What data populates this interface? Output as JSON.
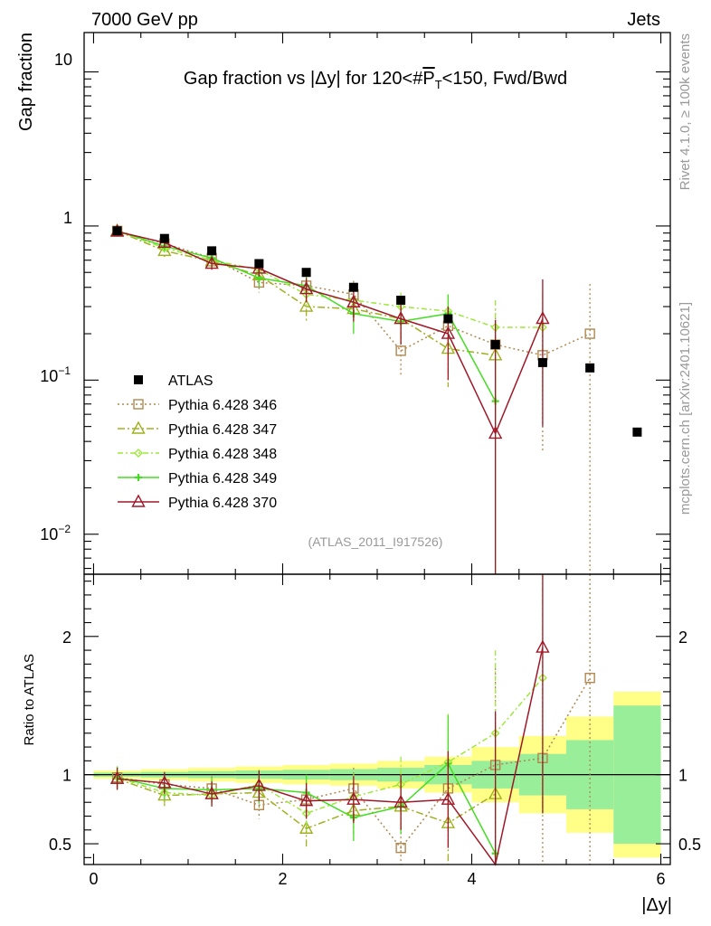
{
  "header": {
    "energy": "7000 GeV pp",
    "process": "Jets",
    "side_rivet": "Rivet 4.1.0, ≥ 100k events",
    "side_mcplots": "mcplots.cern.ch [arXiv:2401.10621]"
  },
  "chart_data": {
    "type": "scatter",
    "title_prefix": "Gap fraction vs |Δy| for 120<#",
    "title_pt": "P",
    "title_sub": "T",
    "title_suffix": "<150, Fwd/Bwd",
    "analysis_label": "(ATLAS_2011_I917526)",
    "ylabel": "Gap fraction",
    "ratio_ylabel": "Ratio to ATLAS",
    "xlabel": "|Δy|",
    "xlim": [
      -0.1,
      6.1
    ],
    "ylim": [
      0.0055,
      18
    ],
    "ratio_ylim": [
      0.35,
      2.45
    ],
    "x_ticks": [
      0,
      2,
      4,
      6
    ],
    "x_tick_labels": [
      "0",
      "2",
      "4",
      "6"
    ],
    "y_tick_labels": {
      "ten": "10",
      "one": "1",
      "tenth_base": "10",
      "tenth_exp": "−1",
      "hundredth_base": "10",
      "hundredth_exp": "−2"
    },
    "ratio_ticks": [
      0.5,
      1,
      2
    ],
    "ratio_tick_labels": [
      "0.5",
      "1",
      "2"
    ],
    "x": [
      0.25,
      0.75,
      1.25,
      1.75,
      2.25,
      2.75,
      3.25,
      3.75,
      4.25,
      4.75,
      5.25,
      5.75
    ],
    "bin_edges": [
      0,
      0.5,
      1,
      1.5,
      2,
      2.5,
      3,
      3.5,
      4,
      4.5,
      5,
      5.5,
      6
    ],
    "data": {
      "name": "ATLAS",
      "values": [
        0.93,
        0.83,
        0.69,
        0.57,
        0.5,
        0.4,
        0.33,
        0.25,
        0.17,
        0.13,
        0.12,
        0.046
      ]
    },
    "band_yellow_halfwidth": [
      0.03,
      0.04,
      0.05,
      0.06,
      0.07,
      0.08,
      0.1,
      0.13,
      0.2,
      0.28,
      0.42,
      0.6
    ],
    "band_green_halfwidth": [
      0.015,
      0.02,
      0.025,
      0.03,
      0.035,
      0.04,
      0.05,
      0.07,
      0.1,
      0.15,
      0.25,
      0.5
    ],
    "series": [
      {
        "name": "Pythia 6.428 346",
        "color": "#b08850",
        "dash": "2,3",
        "marker": "square",
        "values": [
          0.93,
          0.77,
          0.62,
          0.43,
          0.41,
          0.36,
          0.155,
          0.225,
          0.17,
          0.145,
          0.2
        ],
        "errors": [
          0.05,
          0.05,
          0.05,
          0.06,
          0.07,
          0.08,
          0.05,
          0.08,
          0.12,
          0.11,
          0.22
        ]
      },
      {
        "name": "Pythia 6.428 347",
        "color": "#a0b020",
        "dash": "8,3,2,3",
        "marker": "triangle",
        "values": [
          0.93,
          0.69,
          0.59,
          0.48,
          0.3,
          0.29,
          0.25,
          0.16,
          0.145
        ],
        "errors": [
          0.06,
          0.06,
          0.06,
          0.06,
          0.06,
          0.06,
          0.07,
          0.07,
          0.1
        ]
      },
      {
        "name": "Pythia 6.428 348",
        "color": "#9ee83c",
        "dash": "6,3,2,3",
        "marker": "diamond",
        "values": [
          0.93,
          0.72,
          0.6,
          0.52,
          0.36,
          0.33,
          0.3,
          0.28,
          0.22,
          0.22
        ],
        "errors": [
          0.05,
          0.05,
          0.05,
          0.06,
          0.06,
          0.07,
          0.07,
          0.08,
          0.11,
          0.14
        ]
      },
      {
        "name": "Pythia 6.428 349",
        "color": "#44dd22",
        "dash": "",
        "marker": "cross",
        "values": [
          0.93,
          0.74,
          0.62,
          0.46,
          0.41,
          0.27,
          0.24,
          0.27,
          0.073
        ],
        "errors": [
          0.05,
          0.05,
          0.05,
          0.06,
          0.07,
          0.07,
          0.07,
          0.09,
          0.1
        ]
      },
      {
        "name": "Pythia 6.428 370",
        "color": "#a01828",
        "dash": "",
        "marker": "triangle",
        "values": [
          0.92,
          0.78,
          0.57,
          0.53,
          0.39,
          0.32,
          0.25,
          0.2,
          0.045,
          0.25
        ],
        "errors": [
          0.05,
          0.05,
          0.05,
          0.06,
          0.07,
          0.08,
          0.08,
          0.1,
          0.2,
          0.2
        ]
      }
    ],
    "ratio_series": [
      {
        "values": [
          0.98,
          0.93,
          0.9,
          0.78,
          0.82,
          0.9,
          0.47,
          0.9,
          1.07,
          1.12,
          1.7
        ],
        "errors": [
          0.08,
          0.08,
          0.09,
          0.1,
          0.12,
          0.15,
          0.18,
          0.28,
          0.7,
          0.8,
          1.6
        ]
      },
      {
        "values": [
          0.97,
          0.85,
          0.86,
          0.87,
          0.61,
          0.74,
          0.77,
          0.65,
          0.86
        ],
        "errors": [
          0.08,
          0.08,
          0.09,
          0.11,
          0.13,
          0.17,
          0.2,
          0.3,
          0.5
        ]
      },
      {
        "values": [
          0.98,
          0.87,
          0.85,
          0.93,
          0.72,
          0.84,
          0.93,
          1.09,
          1.3,
          1.7
        ],
        "errors": [
          0.08,
          0.08,
          0.09,
          0.11,
          0.13,
          0.17,
          0.2,
          0.35,
          0.6,
          1.0
        ]
      },
      {
        "values": [
          0.98,
          0.9,
          0.89,
          0.9,
          0.87,
          0.69,
          0.77,
          1.08,
          0.43
        ],
        "errors": [
          0.08,
          0.08,
          0.09,
          0.11,
          0.13,
          0.17,
          0.2,
          0.35,
          0.6
        ]
      },
      {
        "values": [
          0.97,
          0.94,
          0.86,
          0.92,
          0.81,
          0.82,
          0.8,
          0.82,
          0.26,
          1.92
        ],
        "errors": [
          0.08,
          0.08,
          0.09,
          0.11,
          0.13,
          0.17,
          0.2,
          0.35,
          1.2,
          1.2
        ]
      }
    ]
  }
}
